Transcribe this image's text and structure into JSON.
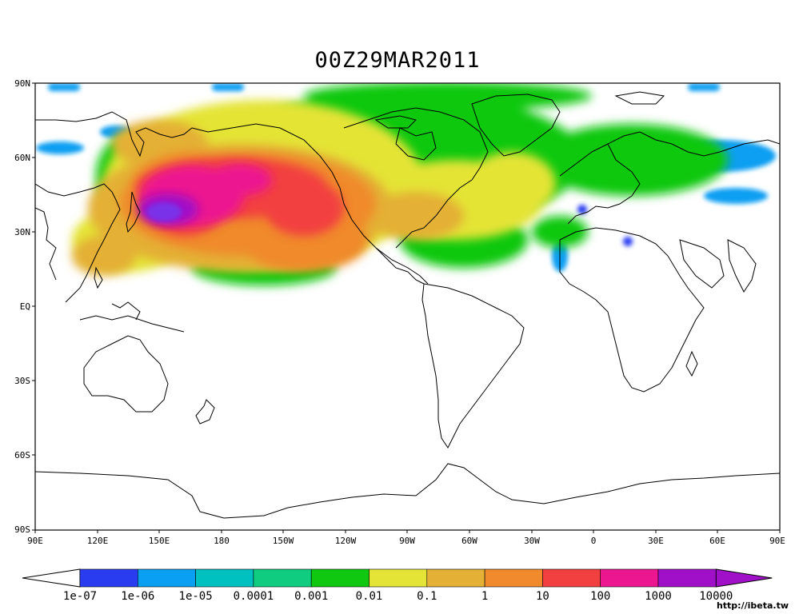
{
  "title": "00Z29MAR2011",
  "axes": {
    "y_ticks": [
      "90N",
      "60N",
      "30N",
      "EQ",
      "30S",
      "60S",
      "90S"
    ],
    "x_ticks": [
      "90E",
      "120E",
      "150E",
      "180",
      "150W",
      "120W",
      "90W",
      "60W",
      "30W",
      "0",
      "30E",
      "60E",
      "90E"
    ]
  },
  "legend": {
    "labels": [
      "1e-07",
      "1e-06",
      "1e-05",
      "0.0001",
      "0.001",
      "0.01",
      "0.1",
      "1",
      "10",
      "100",
      "1000",
      "10000"
    ],
    "colors": [
      "#ffffff",
      "#2a3cf0",
      "#0a9ff2",
      "#00c0c0",
      "#10cc80",
      "#10c810",
      "#e4e436",
      "#e4b036",
      "#f08a2c",
      "#f24040",
      "#ec1690",
      "#a010c8",
      "#a010c8"
    ]
  },
  "credit": "http://ibeta.tw"
}
